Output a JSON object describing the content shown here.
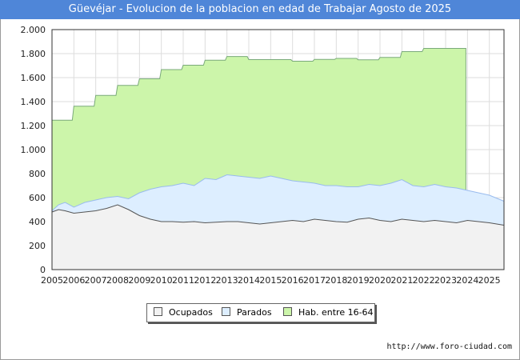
{
  "chart_data": {
    "type": "area",
    "title": "Güevéjar - Evolucion de la poblacion en edad de Trabajar Agosto de 2025",
    "xlabel": "",
    "ylabel": "",
    "ylim": [
      0,
      2000
    ],
    "y_ticks": [
      0,
      200,
      400,
      600,
      800,
      1000,
      1200,
      1400,
      1600,
      1800,
      2000
    ],
    "y_tick_labels": [
      "0",
      "200",
      "400",
      "600",
      "800",
      "1.000",
      "1.200",
      "1.400",
      "1.600",
      "1.800",
      "2.000"
    ],
    "xlim": [
      2005,
      2025.67
    ],
    "x_tick_labels": [
      "2005",
      "2006",
      "2007",
      "2008",
      "2009",
      "2010",
      "2011",
      "2012",
      "2013",
      "2014",
      "2015",
      "2016",
      "2017",
      "2018",
      "2019",
      "2020",
      "2021",
      "2022",
      "2023",
      "2024",
      "2025"
    ],
    "grid": true,
    "legend_position": "bottom-center",
    "colors": {
      "ocupados_fill": "#f2f2f2",
      "ocupados_line": "#555555",
      "parados_fill": "#ddeeff",
      "parados_line": "#99bbee",
      "hab_fill": "#ccf5aa",
      "hab_line": "#7aaa7a",
      "grid": "#dddddd",
      "title_bg": "#4f86d8"
    },
    "series": [
      {
        "name": "Hab. entre 16-64",
        "type": "step",
        "x": [
          2005,
          2006,
          2007,
          2008,
          2009,
          2010,
          2011,
          2012,
          2013,
          2014,
          2015,
          2016,
          2017,
          2018,
          2019,
          2020,
          2021,
          2022,
          2023,
          2024
        ],
        "values": [
          1245,
          1362,
          1452,
          1535,
          1590,
          1667,
          1703,
          1745,
          1776,
          1750,
          1750,
          1737,
          1752,
          1760,
          1748,
          1768,
          1817,
          1843,
          1843,
          0
        ]
      },
      {
        "name": "Parados",
        "type": "line",
        "x": [
          2005,
          2005.3,
          2005.6,
          2006,
          2006.5,
          2007,
          2007.5,
          2008,
          2008.5,
          2009,
          2009.5,
          2010,
          2010.5,
          2011,
          2011.5,
          2012,
          2012.5,
          2013,
          2013.5,
          2014,
          2014.5,
          2015,
          2015.5,
          2016,
          2016.5,
          2017,
          2017.5,
          2018,
          2018.5,
          2019,
          2019.5,
          2020,
          2020.5,
          2021,
          2021.5,
          2022,
          2022.5,
          2023,
          2023.5,
          2024,
          2024.5,
          2025,
          2025.67
        ],
        "values": [
          490,
          540,
          560,
          520,
          560,
          580,
          600,
          610,
          590,
          640,
          670,
          690,
          700,
          720,
          700,
          760,
          750,
          790,
          780,
          770,
          760,
          780,
          760,
          740,
          730,
          720,
          700,
          700,
          690,
          690,
          710,
          700,
          720,
          750,
          700,
          690,
          710,
          690,
          680,
          660,
          640,
          620,
          570
        ]
      },
      {
        "name": "Ocupados",
        "type": "line",
        "x": [
          2005,
          2005.3,
          2005.6,
          2006,
          2006.5,
          2007,
          2007.5,
          2008,
          2008.5,
          2009,
          2009.5,
          2010,
          2010.5,
          2011,
          2011.5,
          2012,
          2012.5,
          2013,
          2013.5,
          2014,
          2014.5,
          2015,
          2015.5,
          2016,
          2016.5,
          2017,
          2017.5,
          2018,
          2018.5,
          2019,
          2019.5,
          2020,
          2020.5,
          2021,
          2021.5,
          2022,
          2022.5,
          2023,
          2023.5,
          2024,
          2024.5,
          2025,
          2025.67
        ],
        "values": [
          480,
          500,
          490,
          470,
          480,
          490,
          510,
          540,
          500,
          450,
          420,
          400,
          400,
          395,
          400,
          390,
          395,
          400,
          400,
          390,
          380,
          390,
          400,
          410,
          400,
          420,
          410,
          400,
          395,
          420,
          430,
          410,
          400,
          420,
          410,
          400,
          410,
          400,
          390,
          410,
          400,
          390,
          370
        ]
      }
    ],
    "legend": [
      "Ocupados",
      "Parados",
      "Hab. entre 16-64"
    ]
  },
  "source": "http://www.foro-ciudad.com"
}
